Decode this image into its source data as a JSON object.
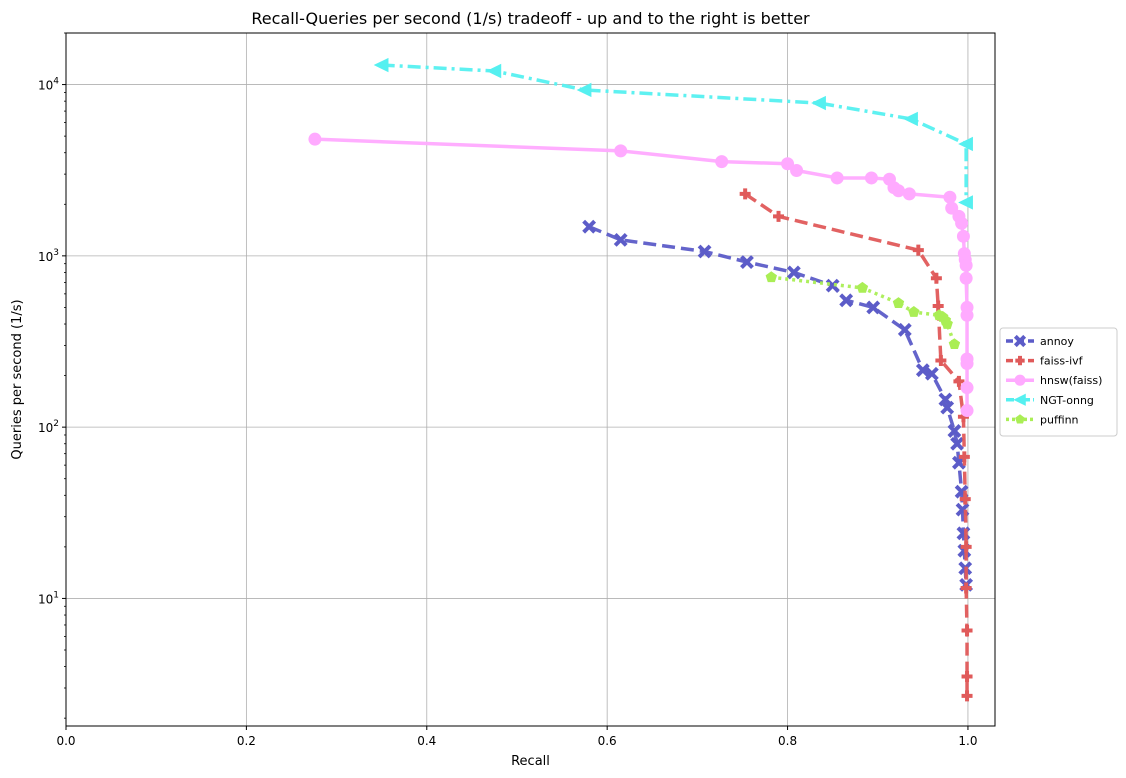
{
  "chart_data": {
    "type": "line",
    "title": "Recall-Queries per second (1/s) tradeoff - up and to the right is better",
    "xlabel": "Recall",
    "ylabel": "Queries per second (1/s)",
    "xlim": [
      0.0,
      1.03
    ],
    "ylim": [
      1.8,
      20000
    ],
    "yscale": "log",
    "grid": true,
    "legend_position": "right",
    "x_ticks": [
      {
        "value": 0.0,
        "label": "0.0"
      },
      {
        "value": 0.2,
        "label": "0.2"
      },
      {
        "value": 0.4,
        "label": "0.4"
      },
      {
        "value": 0.6,
        "label": "0.6"
      },
      {
        "value": 0.8,
        "label": "0.8"
      },
      {
        "value": 1.0,
        "label": "1.0"
      }
    ],
    "y_ticks": [
      {
        "value": 10,
        "base": "10",
        "exp": "1"
      },
      {
        "value": 100,
        "base": "10",
        "exp": "2"
      },
      {
        "value": 1000,
        "base": "10",
        "exp": "3"
      },
      {
        "value": 10000,
        "base": "10",
        "exp": "4"
      }
    ],
    "series": [
      {
        "name": "annoy",
        "color": "#5c5cc8",
        "dash": "dashed",
        "marker": "x",
        "points": [
          [
            0.58,
            1480
          ],
          [
            0.615,
            1240
          ],
          [
            0.708,
            1060
          ],
          [
            0.755,
            920
          ],
          [
            0.807,
            800
          ],
          [
            0.85,
            670
          ],
          [
            0.865,
            550
          ],
          [
            0.895,
            500
          ],
          [
            0.93,
            370
          ],
          [
            0.95,
            215
          ],
          [
            0.96,
            205
          ],
          [
            0.975,
            145
          ],
          [
            0.977,
            130
          ],
          [
            0.985,
            95
          ],
          [
            0.988,
            80
          ],
          [
            0.99,
            62
          ],
          [
            0.993,
            42
          ],
          [
            0.994,
            33
          ],
          [
            0.995,
            24
          ],
          [
            0.996,
            19
          ],
          [
            0.997,
            15
          ],
          [
            0.998,
            12
          ]
        ]
      },
      {
        "name": "faiss-ivf",
        "color": "#e05a5a",
        "dash": "dashed",
        "marker": "plus",
        "points": [
          [
            0.753,
            2300
          ],
          [
            0.79,
            1700
          ],
          [
            0.945,
            1080
          ],
          [
            0.965,
            740
          ],
          [
            0.967,
            510
          ],
          [
            0.97,
            245
          ],
          [
            0.99,
            185
          ],
          [
            0.995,
            115
          ],
          [
            0.996,
            67
          ],
          [
            0.997,
            38
          ],
          [
            0.998,
            20
          ],
          [
            0.998,
            11.5
          ],
          [
            0.999,
            6.5
          ],
          [
            0.999,
            3.5
          ],
          [
            0.999,
            2.7
          ]
        ]
      },
      {
        "name": "hnsw(faiss)",
        "color": "#ffaaff",
        "dash": "solid",
        "marker": "circle",
        "points": [
          [
            0.276,
            4800
          ],
          [
            0.615,
            4100
          ],
          [
            0.727,
            3550
          ],
          [
            0.8,
            3450
          ],
          [
            0.81,
            3150
          ],
          [
            0.855,
            2850
          ],
          [
            0.893,
            2850
          ],
          [
            0.913,
            2800
          ],
          [
            0.918,
            2500
          ],
          [
            0.923,
            2400
          ],
          [
            0.935,
            2300
          ],
          [
            0.98,
            2200
          ],
          [
            0.982,
            1900
          ],
          [
            0.99,
            1700
          ],
          [
            0.993,
            1550
          ],
          [
            0.995,
            1300
          ],
          [
            0.996,
            1030
          ],
          [
            0.997,
            950
          ],
          [
            0.998,
            880
          ],
          [
            0.998,
            740
          ],
          [
            0.999,
            500
          ],
          [
            0.999,
            450
          ],
          [
            0.999,
            250
          ],
          [
            0.999,
            235
          ],
          [
            0.999,
            170
          ],
          [
            0.999,
            125
          ]
        ]
      },
      {
        "name": "NGT-onng",
        "color": "#55f0f0",
        "dash": "dashdot",
        "marker": "triangle-left",
        "points": [
          [
            0.35,
            13000
          ],
          [
            0.475,
            12000
          ],
          [
            0.575,
            9300
          ],
          [
            0.835,
            7800
          ],
          [
            0.937,
            6300
          ],
          [
            0.998,
            4500
          ],
          [
            0.998,
            2050
          ]
        ]
      },
      {
        "name": "puffinn",
        "color": "#aaee55",
        "dash": "dotted",
        "marker": "pentagon",
        "points": [
          [
            0.782,
            750
          ],
          [
            0.883,
            650
          ],
          [
            0.923,
            530
          ],
          [
            0.94,
            470
          ],
          [
            0.968,
            450
          ],
          [
            0.972,
            440
          ],
          [
            0.975,
            420
          ],
          [
            0.977,
            400
          ],
          [
            0.985,
            305
          ]
        ]
      }
    ]
  }
}
